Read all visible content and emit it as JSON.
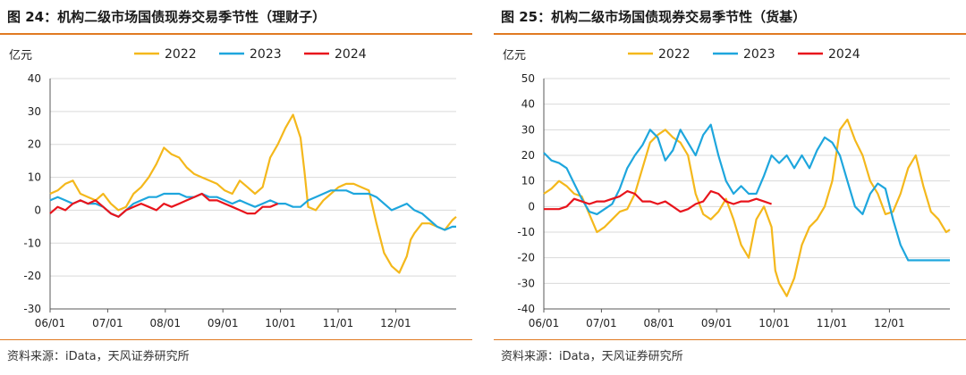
{
  "source_text": "资料来源：iData，天风证券研究所",
  "colors": {
    "2022": "#f4b81c",
    "2023": "#1ea6dd",
    "2024": "#e8141c",
    "accent": "#e07a22",
    "grid": "#d9d9d9"
  },
  "chart_data": [
    {
      "type": "line",
      "title": "图 24：机构二级市场国债现券交易季节性（理财子）",
      "ylabel": "亿元",
      "ylim": [
        -30,
        40
      ],
      "yticks": [
        -30,
        -20,
        -10,
        0,
        10,
        20,
        30,
        40
      ],
      "xticks": [
        "06/01",
        "07/01",
        "08/01",
        "09/01",
        "10/01",
        "11/01",
        "12/01"
      ],
      "xlim": [
        0,
        214
      ],
      "grid": true,
      "legend": "top",
      "series": [
        {
          "name": "2022",
          "x": [
            0,
            4,
            8,
            12,
            16,
            20,
            24,
            28,
            32,
            36,
            40,
            44,
            48,
            52,
            56,
            60,
            64,
            68,
            72,
            76,
            80,
            84,
            88,
            92,
            96,
            100,
            104,
            108,
            112,
            116,
            120,
            124,
            128,
            132,
            134,
            136,
            140,
            144,
            148,
            152,
            156,
            160,
            164,
            168,
            172,
            176,
            180,
            184,
            188,
            190,
            192,
            196,
            200,
            204,
            208,
            212,
            214
          ],
          "y": [
            5,
            6,
            8,
            9,
            5,
            4,
            3,
            5,
            2,
            0,
            1,
            5,
            7,
            10,
            14,
            19,
            17,
            16,
            13,
            11,
            10,
            9,
            8,
            6,
            5,
            9,
            7,
            5,
            7,
            16,
            20,
            25,
            29,
            22,
            12,
            1,
            0,
            3,
            5,
            7,
            8,
            8,
            7,
            6,
            -4,
            -13,
            -17,
            -19,
            -14,
            -9,
            -7,
            -4,
            -4,
            -5,
            -6,
            -3,
            -2
          ]
        },
        {
          "name": "2023",
          "x": [
            0,
            4,
            8,
            12,
            16,
            20,
            24,
            28,
            32,
            36,
            40,
            44,
            48,
            52,
            56,
            60,
            64,
            68,
            72,
            76,
            80,
            84,
            88,
            92,
            96,
            100,
            104,
            108,
            112,
            116,
            120,
            124,
            128,
            132,
            136,
            140,
            144,
            148,
            152,
            156,
            160,
            164,
            168,
            172,
            176,
            180,
            184,
            188,
            192,
            196,
            200,
            204,
            208,
            212,
            214
          ],
          "y": [
            3,
            4,
            3,
            2,
            3,
            2,
            2,
            1,
            -1,
            -2,
            0,
            2,
            3,
            4,
            4,
            5,
            5,
            5,
            4,
            4,
            5,
            4,
            4,
            3,
            2,
            3,
            2,
            1,
            2,
            3,
            2,
            2,
            1,
            1,
            3,
            4,
            5,
            6,
            6,
            6,
            5,
            5,
            5,
            4,
            2,
            0,
            1,
            2,
            0,
            -1,
            -3,
            -5,
            -6,
            -5,
            -5
          ]
        },
        {
          "name": "2024",
          "x": [
            0,
            4,
            8,
            12,
            16,
            20,
            24,
            28,
            32,
            36,
            40,
            44,
            48,
            52,
            56,
            60,
            64,
            68,
            72,
            76,
            80,
            84,
            88,
            92,
            96,
            100,
            104,
            108,
            112,
            116,
            120
          ],
          "y": [
            -1,
            1,
            0,
            2,
            3,
            2,
            3,
            1,
            -1,
            -2,
            0,
            1,
            2,
            1,
            0,
            2,
            1,
            2,
            3,
            4,
            5,
            3,
            3,
            2,
            1,
            0,
            -1,
            -1,
            1,
            1,
            2
          ]
        }
      ]
    },
    {
      "type": "line",
      "title": "图 25：机构二级市场国债现券交易季节性（货基）",
      "ylabel": "亿元",
      "ylim": [
        -40,
        50
      ],
      "yticks": [
        -40,
        -30,
        -20,
        -10,
        0,
        10,
        20,
        30,
        40,
        50
      ],
      "xticks": [
        "06/01",
        "07/01",
        "08/01",
        "09/01",
        "10/01",
        "11/01",
        "12/01"
      ],
      "xlim": [
        0,
        214
      ],
      "grid": true,
      "legend": "top",
      "series": [
        {
          "name": "2022",
          "x": [
            0,
            4,
            8,
            12,
            16,
            20,
            24,
            28,
            32,
            36,
            40,
            44,
            48,
            52,
            56,
            60,
            64,
            68,
            72,
            76,
            80,
            84,
            88,
            92,
            96,
            100,
            104,
            108,
            112,
            116,
            120,
            122,
            124,
            128,
            132,
            136,
            140,
            144,
            148,
            152,
            156,
            160,
            164,
            168,
            172,
            176,
            180,
            184,
            188,
            192,
            196,
            200,
            204,
            208,
            212,
            214
          ],
          "y": [
            5,
            7,
            10,
            8,
            5,
            4,
            -3,
            -10,
            -8,
            -5,
            -2,
            -1,
            5,
            15,
            25,
            28,
            30,
            27,
            25,
            20,
            5,
            -3,
            -5,
            -2,
            3,
            -5,
            -15,
            -20,
            -5,
            0,
            -8,
            -25,
            -30,
            -35,
            -28,
            -15,
            -8,
            -5,
            0,
            10,
            30,
            34,
            26,
            20,
            10,
            5,
            -3,
            -2,
            5,
            15,
            20,
            8,
            -2,
            -5,
            -10,
            -9
          ]
        },
        {
          "name": "2023",
          "x": [
            0,
            4,
            8,
            12,
            16,
            20,
            24,
            28,
            32,
            36,
            40,
            44,
            48,
            52,
            56,
            60,
            64,
            68,
            72,
            76,
            80,
            84,
            88,
            92,
            96,
            100,
            104,
            108,
            112,
            116,
            120,
            124,
            128,
            132,
            136,
            140,
            144,
            148,
            152,
            156,
            160,
            164,
            168,
            172,
            176,
            180,
            184,
            188,
            192,
            196,
            200,
            204,
            208,
            212,
            214
          ],
          "y": [
            21,
            18,
            17,
            15,
            9,
            3,
            -2,
            -3,
            -1,
            1,
            7,
            15,
            20,
            24,
            30,
            27,
            18,
            22,
            30,
            25,
            20,
            28,
            32,
            20,
            10,
            5,
            8,
            5,
            5,
            12,
            20,
            17,
            20,
            15,
            20,
            15,
            22,
            27,
            25,
            20,
            10,
            0,
            -3,
            5,
            9,
            7,
            -5,
            -15,
            -21,
            -21,
            -21,
            -21,
            -21,
            -21,
            -21
          ]
        },
        {
          "name": "2024",
          "x": [
            0,
            4,
            8,
            12,
            16,
            20,
            24,
            28,
            32,
            36,
            40,
            44,
            48,
            52,
            56,
            60,
            64,
            68,
            72,
            76,
            80,
            84,
            88,
            92,
            96,
            100,
            104,
            108,
            112,
            116,
            120
          ],
          "y": [
            -1,
            -1,
            -1,
            0,
            3,
            2,
            1,
            2,
            2,
            3,
            4,
            6,
            5,
            2,
            2,
            1,
            2,
            0,
            -2,
            -1,
            1,
            2,
            6,
            5,
            2,
            1,
            2,
            2,
            3,
            2,
            1
          ]
        }
      ]
    }
  ]
}
